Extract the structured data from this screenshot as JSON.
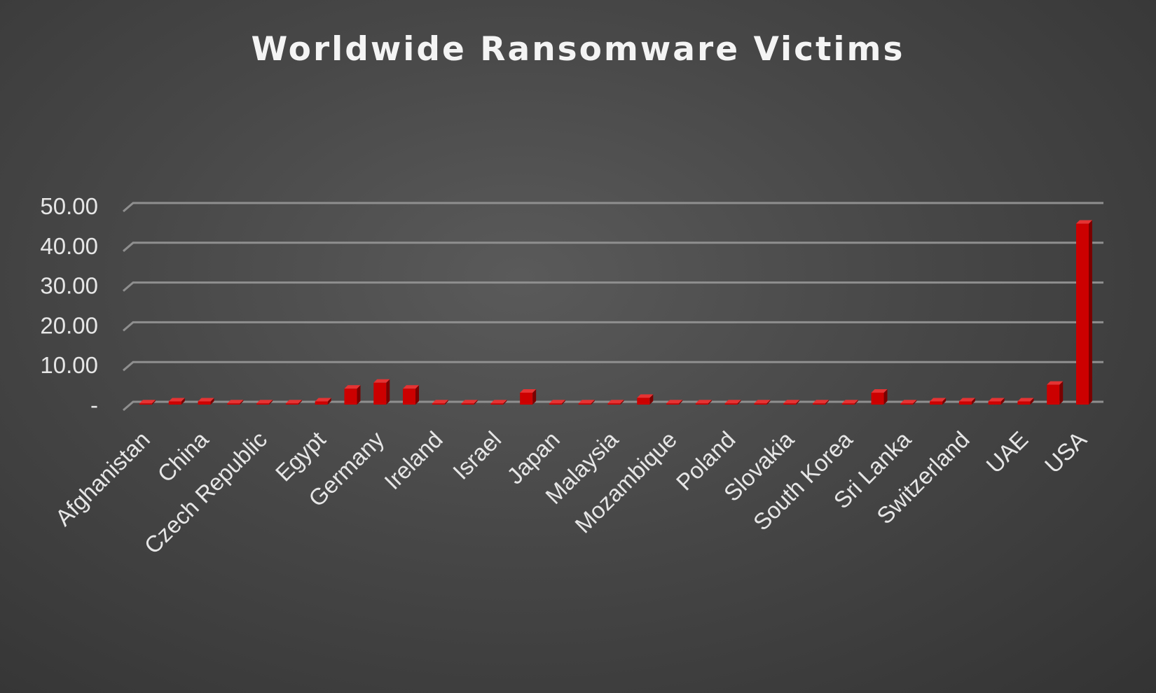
{
  "chart_data": {
    "type": "bar",
    "title": "Worldwide Ransomware Victims",
    "xlabel": "",
    "ylabel": "",
    "ylim": [
      0,
      50
    ],
    "yticks": [
      {
        "value": 0,
        "label": "-"
      },
      {
        "value": 10,
        "label": "10.00"
      },
      {
        "value": 20,
        "label": "20.00"
      },
      {
        "value": 30,
        "label": "30.00"
      },
      {
        "value": 40,
        "label": "40.00"
      },
      {
        "value": 50,
        "label": "50.00"
      }
    ],
    "grid": true,
    "bar_color": "#cc0000",
    "bar_side_color": "#7a0000",
    "bar_top_color": "#e63333",
    "categories": [
      "Afghanistan",
      "",
      "China",
      "",
      "Czech Republic",
      "",
      "Egypt",
      "",
      "Germany",
      "",
      "Ireland",
      "",
      "Israel",
      "",
      "Japan",
      "",
      "Malaysia",
      "",
      "Mozambique",
      "",
      "Poland",
      "",
      "Slovakia",
      "",
      "South Korea",
      "",
      "Sri Lanka",
      "",
      "Switzerland",
      "",
      "UAE",
      "",
      "USA"
    ],
    "values": [
      0.3,
      0.8,
      0.8,
      0.3,
      0.3,
      0.3,
      0.8,
      4.0,
      5.5,
      4.0,
      0.3,
      0.3,
      0.3,
      3.0,
      0.3,
      0.3,
      0.3,
      1.7,
      0.3,
      0.3,
      0.3,
      0.3,
      0.3,
      0.3,
      0.3,
      3.0,
      0.3,
      0.8,
      0.8,
      0.8,
      0.8,
      5.0,
      45.5
    ]
  }
}
